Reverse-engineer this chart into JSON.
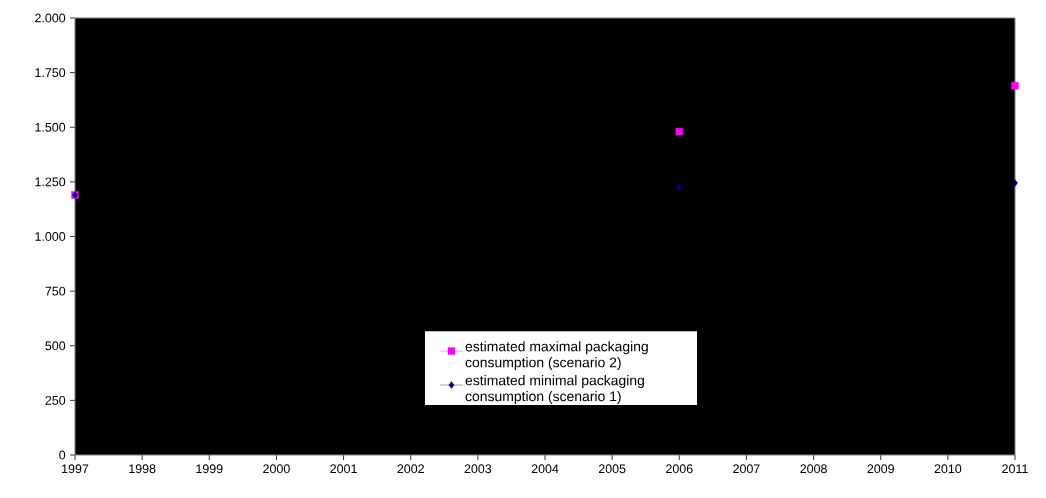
{
  "chart_data": {
    "type": "scatter",
    "x": [
      1997,
      2006,
      2011
    ],
    "series": [
      {
        "name": "estimated maximal packaging consumption (scenario 2)",
        "color": "#ff00ff",
        "marker": "square",
        "values": [
          1190,
          1480,
          1690
        ]
      },
      {
        "name": "estimated minimal packaging consumption (scenario 1)",
        "color": "#000080",
        "marker": "diamond",
        "values": [
          1190,
          1225,
          1245
        ]
      }
    ],
    "xlim": [
      1997,
      2011
    ],
    "xticks": [
      1997,
      1998,
      1999,
      2000,
      2001,
      2002,
      2003,
      2004,
      2005,
      2006,
      2007,
      2008,
      2009,
      2010,
      2011
    ],
    "ylim": [
      0,
      2000
    ],
    "yticks": [
      0,
      250,
      500,
      750,
      {
        "value": 1000,
        "label": "1.000"
      },
      {
        "value": 1250,
        "label": "1.250"
      },
      {
        "value": 1500,
        "label": "1.500"
      },
      {
        "value": 1750,
        "label": "1.750"
      },
      {
        "value": 2000,
        "label": "2.000"
      }
    ],
    "legend": "bottom",
    "grid": false
  }
}
